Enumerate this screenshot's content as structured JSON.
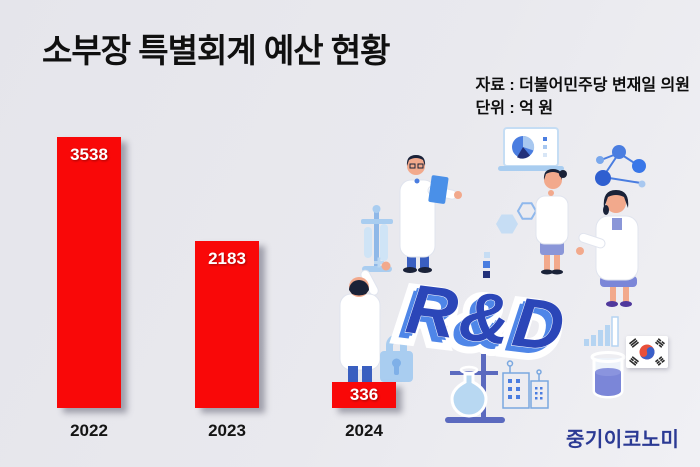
{
  "title": "소부장 특별회계 예산 현황",
  "source": {
    "line1": "자료 : 더불어민주당 변재일 의원",
    "line2": "단위 : 억 원"
  },
  "rnd_text": "R&D",
  "logo_text": "중기이코노미",
  "chart_data": {
    "type": "bar",
    "title": "소부장 특별회계 예산 현황",
    "categories": [
      "2022",
      "2023",
      "2024"
    ],
    "values": [
      3538,
      2183,
      336
    ],
    "unit": "억 원",
    "source": "더불어민주당 변재일 의원",
    "bar_color": "#f90808",
    "value_label_color": "#ffffff",
    "ylim": [
      0,
      3700
    ],
    "grid": false,
    "legend": false
  },
  "colors": {
    "background": "#e8e8ee",
    "bar_red": "#f90808",
    "rnd_face_blue": "#2b46b8",
    "rnd_side_blue": "#4f86e8",
    "logo_navy": "#2b3a94",
    "illustration_blue": "#4a7de0",
    "illustration_light_blue": "#a9cdf0"
  }
}
